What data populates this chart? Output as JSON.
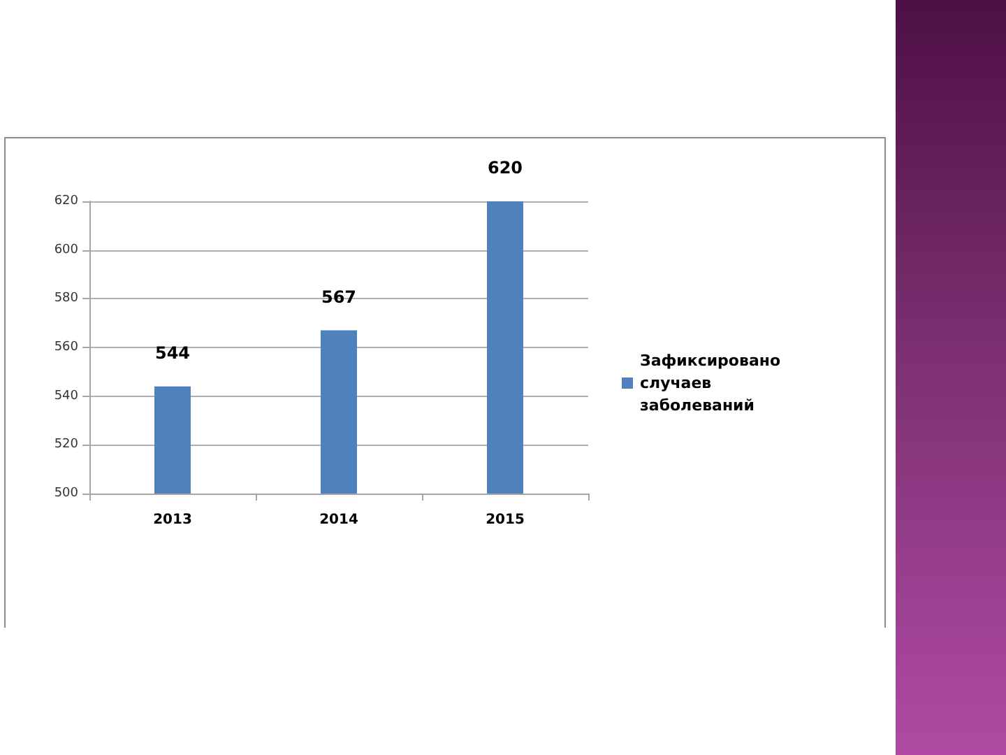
{
  "chart_data": {
    "type": "bar",
    "categories": [
      "2013",
      "2014",
      "2015"
    ],
    "series": [
      {
        "name": "Зафиксировано случаев заболеваний",
        "color": "#4f81bd",
        "values": [
          544,
          567,
          620
        ]
      }
    ],
    "ylim": [
      500,
      620
    ],
    "yticks": [
      500,
      520,
      540,
      560,
      580,
      600,
      620
    ],
    "grid": "y",
    "legend": "right",
    "data_labels": true
  }
}
